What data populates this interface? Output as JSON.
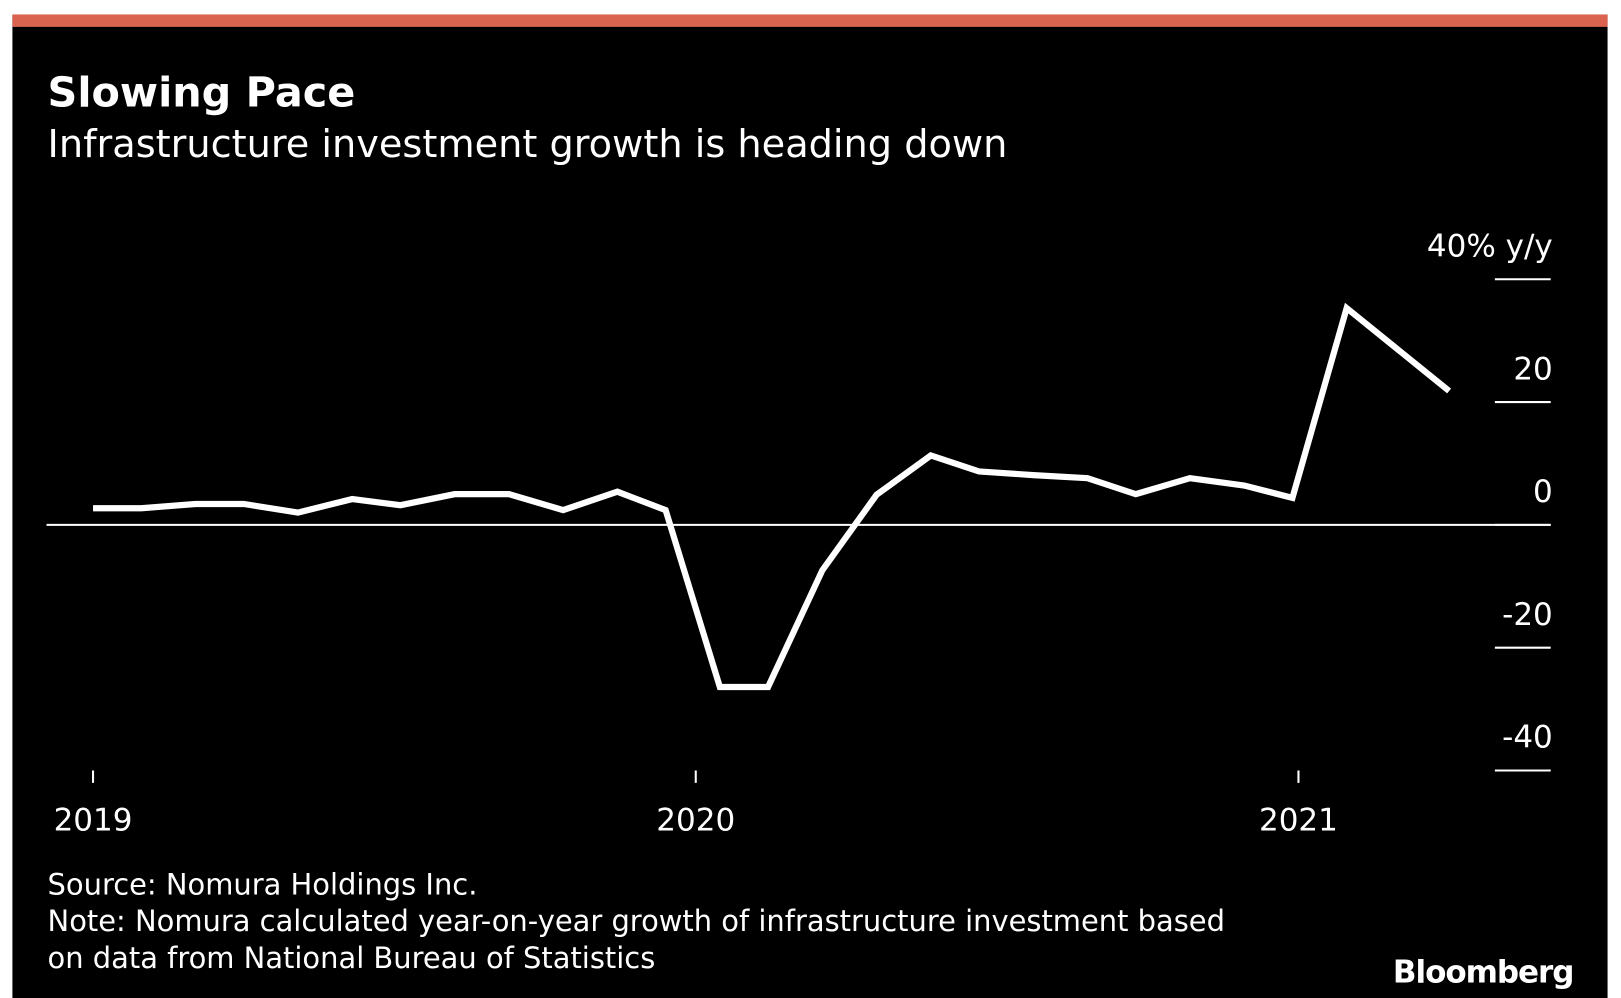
{
  "chart_data": {
    "type": "line",
    "title": "Slowing Pace",
    "subtitle": "Infrastructure investment growth is heading down",
    "source": "Source: Nomura Holdings Inc.",
    "note": [
      "Note: Nomura calculated year-on-year growth of infrastructure investment based",
      "on data from National Bureau of Statistics"
    ],
    "logo": "Bloomberg",
    "x": [
      2019.0,
      2019.08,
      2019.17,
      2019.25,
      2019.34,
      2019.43,
      2019.51,
      2019.6,
      2019.69,
      2019.78,
      2019.87,
      2019.95,
      2020.04,
      2020.12,
      2020.21,
      2020.3,
      2020.39,
      2020.47,
      2020.56,
      2020.65,
      2020.73,
      2020.82,
      2020.91,
      2020.99,
      2021.08,
      2021.25
    ],
    "series": [
      {
        "color": "#ffffff",
        "values": [
          2.7,
          2.7,
          3.4,
          3.4,
          2.0,
          4.2,
          3.2,
          5.0,
          5.0,
          2.4,
          5.4,
          2.4,
          -26.4,
          -26.4,
          -7.4,
          4.9,
          11.3,
          8.7,
          8.1,
          7.6,
          5.0,
          7.6,
          6.4,
          4.4,
          35.3,
          21.8
        ]
      }
    ],
    "xlim": [
      2018.92,
      2021.35
    ],
    "xticks": [
      2019,
      2020,
      2021
    ],
    "ylim": [
      -40,
      40
    ],
    "yticks": [
      {
        "value": 40,
        "label": "40% y/y"
      },
      20,
      0,
      -20,
      -40
    ]
  }
}
